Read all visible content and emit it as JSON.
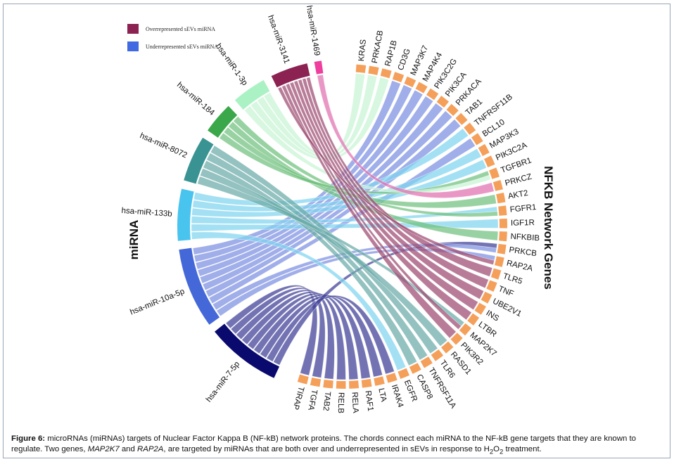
{
  "legend": [
    {
      "label": "Overrepresented sEVs miRNA",
      "color": "#8b2252"
    },
    {
      "label": "Underrepresented sEVs miRNA",
      "color": "#4169e1"
    }
  ],
  "axis_labels": {
    "mirna": "miRNA",
    "genes": "NFKB Network Genes"
  },
  "mirnas": [
    {
      "name": "hsa-miR-7-5p",
      "color": "#0a0a6e",
      "chord": "#3d3d96"
    },
    {
      "name": "hsa-miR-10a-5p",
      "color": "#4468d8",
      "chord": "#7b8fe0"
    },
    {
      "name": "hsa-miR-133b",
      "color": "#48c4ee",
      "chord": "#7fd4f0"
    },
    {
      "name": "hsa-miR-8072",
      "color": "#3a9393",
      "chord": "#6aaaa8"
    },
    {
      "name": "hsa-miR-184",
      "color": "#3aa84a",
      "chord": "#70c07e"
    },
    {
      "name": "hsa-miR-1-3p",
      "color": "#aaf2c4",
      "chord": "#c8f4d4"
    },
    {
      "name": "hsa-miR-3141",
      "color": "#8b2252",
      "chord": "#9c4a70"
    },
    {
      "name": "hsa-miR-1469",
      "color": "#ee3e9e",
      "chord": "#e070b0"
    }
  ],
  "genes": [
    "KRAS",
    "PRKACB",
    "RAP1B",
    "CD3G",
    "MAP3K7",
    "MAP4K4",
    "PIK3C2G",
    "PIK3CA",
    "PRKACA",
    "TAB1",
    "TNFRSF11B",
    "BCL10",
    "MAP3K3",
    "PIK3C2A",
    "TGFBR1",
    "PRKCZ",
    "AKT2",
    "FGFR1",
    "IGF1R",
    "NFKBIB",
    "PRKCB",
    "RAP2A",
    "TLR5",
    "TNF",
    "UBE2V1",
    "INS",
    "LTBR",
    "MAP2K7",
    "PIK3R2",
    "RASD1",
    "TLR6",
    "TNFRSF11A",
    "CASP8",
    "EGFR",
    "IRAK4",
    "LTA",
    "RAF1",
    "RELA",
    "RELB",
    "TAB2",
    "TGFA",
    "TIRAP"
  ],
  "links": {
    "hsa-miR-7-5p": [
      "TIRAP",
      "TGFA",
      "TAB2",
      "RELB",
      "RELA",
      "RAF1",
      "LTA",
      "IRAK4",
      "PRKCB"
    ],
    "hsa-miR-10a-5p": [
      "CD3G",
      "MAP3K7",
      "MAP4K4",
      "PIK3C2G",
      "PIK3CA",
      "PRKACA",
      "TAB1",
      "BCL10",
      "PRKCB",
      "RAP2A"
    ],
    "hsa-miR-133b": [
      "TNFRSF11B",
      "MAP3K3",
      "PIK3C2A",
      "FGFR1",
      "IGF1R",
      "EGFR"
    ],
    "hsa-miR-8072": [
      "TLR6",
      "TNFRSF11A",
      "CASP8",
      "RASD1",
      "MAP2K7"
    ],
    "hsa-miR-184": [
      "FGFR1",
      "NFKBIB",
      "AKT2",
      "TGFBR1"
    ],
    "hsa-miR-1-3p": [
      "KRAS",
      "PRKACB",
      "RAP1B",
      "TGFBR1"
    ],
    "hsa-miR-3141": [
      "TLR5",
      "TNF",
      "UBE2V1",
      "INS",
      "LTBR",
      "MAP2K7",
      "PIK3R2",
      "RAP2A"
    ],
    "hsa-miR-1469": [
      "PRKCZ"
    ]
  },
  "caption": {
    "label": "Figure 6:",
    "part1": " microRNAs (miRNAs) targets of Nuclear Factor Kappa B (NF-kB) network proteins. The chords connect each miRNA to the NF-kB gene targets that they are known to regulate. Two genes, ",
    "gene1": "MAP2K7",
    "and": " and ",
    "gene2": "RAP2A",
    "part2": ", are targeted by miRNAs that are both over and underrepresented in sEVs in response to H",
    "sub1": "2",
    "o": "O",
    "sub2": "2",
    "part3": " treatment."
  }
}
